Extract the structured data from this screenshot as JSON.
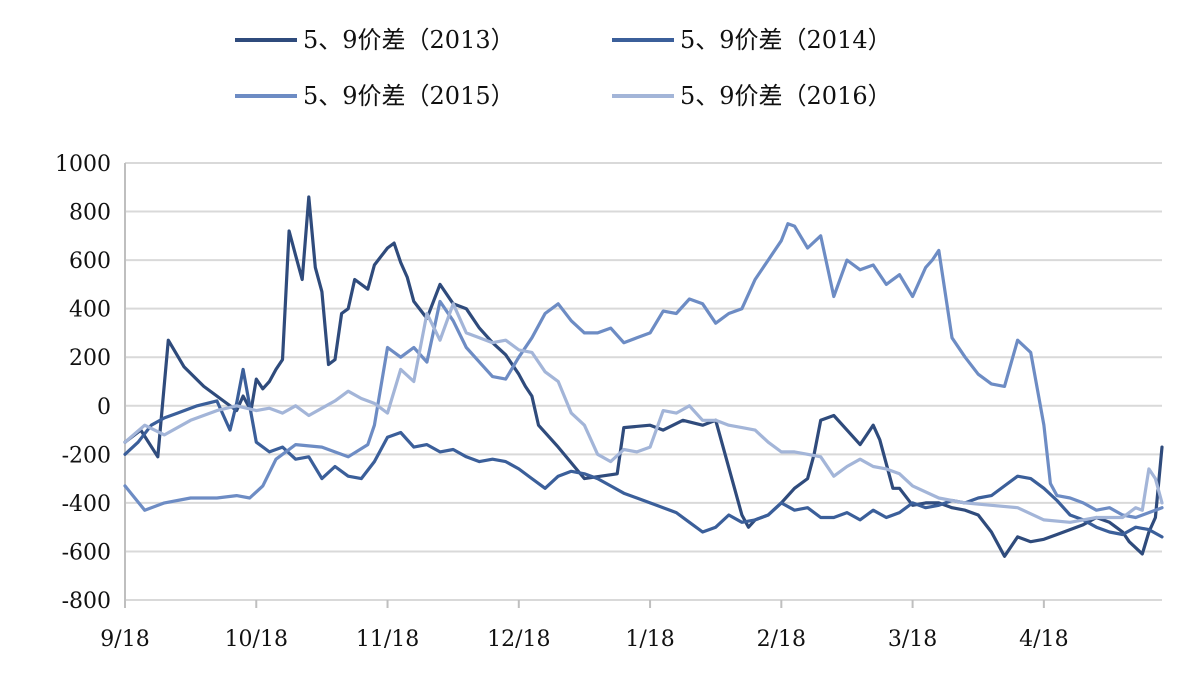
{
  "chart_data": {
    "type": "line",
    "title": "",
    "xlabel": "",
    "ylabel": "",
    "ylim": [
      -800,
      1000
    ],
    "y_ticks": [
      -800,
      -600,
      -400,
      -200,
      0,
      200,
      400,
      600,
      800,
      1000
    ],
    "x_ticks": [
      "9/18",
      "10/18",
      "11/18",
      "12/18",
      "1/18",
      "2/18",
      "3/18",
      "4/18"
    ],
    "x_range_months": [
      0,
      7.9
    ],
    "grid": true,
    "legend_position": "top",
    "series": [
      {
        "name": "5、9价差（2013）",
        "color": "#2f4b7c",
        "x": [
          0,
          0.12,
          0.25,
          0.33,
          0.45,
          0.6,
          0.75,
          0.85,
          0.9,
          0.96,
          1.0,
          1.05,
          1.1,
          1.15,
          1.2,
          1.25,
          1.3,
          1.35,
          1.4,
          1.45,
          1.5,
          1.55,
          1.6,
          1.65,
          1.7,
          1.75,
          1.85,
          1.9,
          2.0,
          2.05,
          2.1,
          2.15,
          2.2,
          2.3,
          2.4,
          2.5,
          2.6,
          2.7,
          2.8,
          2.9,
          3.0,
          3.05,
          3.1,
          3.15,
          3.3,
          3.5,
          3.75,
          3.8,
          4.0,
          4.1,
          4.25,
          4.4,
          4.5,
          4.7,
          4.75,
          4.8,
          4.9,
          5.0,
          5.1,
          5.2,
          5.25,
          5.3,
          5.4,
          5.5,
          5.6,
          5.65,
          5.7,
          5.75,
          5.85,
          5.9,
          6.0,
          6.1,
          6.2,
          6.3,
          6.4,
          6.5,
          6.6,
          6.7,
          6.8,
          6.9,
          7.0,
          7.1,
          7.2,
          7.3,
          7.4,
          7.5,
          7.55,
          7.6,
          7.65,
          7.75,
          7.8,
          7.85,
          7.9
        ],
        "y": [
          -150,
          -100,
          -210,
          270,
          160,
          80,
          20,
          -20,
          40,
          -20,
          110,
          70,
          100,
          150,
          190,
          720,
          620,
          520,
          860,
          570,
          470,
          170,
          190,
          380,
          400,
          520,
          480,
          580,
          650,
          670,
          590,
          530,
          430,
          360,
          500,
          420,
          400,
          320,
          260,
          210,
          130,
          80,
          40,
          -80,
          -170,
          -300,
          -280,
          -90,
          -80,
          -100,
          -60,
          -80,
          -60,
          -450,
          -500,
          -470,
          -450,
          -400,
          -340,
          -300,
          -200,
          -60,
          -40,
          -100,
          -160,
          -120,
          -80,
          -140,
          -340,
          -340,
          -410,
          -400,
          -400,
          -420,
          -430,
          -450,
          -520,
          -620,
          -540,
          -560,
          -550,
          -530,
          -510,
          -490,
          -460,
          -480,
          -500,
          -520,
          -560,
          -610,
          -520,
          -460,
          -170
        ]
      },
      {
        "name": "5、9价差（2014）",
        "color": "#3b5f9a",
        "x": [
          0,
          0.1,
          0.2,
          0.3,
          0.4,
          0.55,
          0.7,
          0.8,
          0.85,
          0.9,
          1.0,
          1.1,
          1.2,
          1.3,
          1.4,
          1.5,
          1.6,
          1.7,
          1.8,
          1.9,
          2.0,
          2.1,
          2.2,
          2.3,
          2.4,
          2.5,
          2.6,
          2.7,
          2.8,
          2.9,
          3.0,
          3.1,
          3.2,
          3.3,
          3.4,
          3.5,
          3.6,
          3.7,
          3.8,
          3.9,
          4.0,
          4.1,
          4.2,
          4.3,
          4.4,
          4.5,
          4.6,
          4.7,
          4.8,
          4.9,
          5.0,
          5.1,
          5.2,
          5.3,
          5.4,
          5.5,
          5.6,
          5.7,
          5.8,
          5.9,
          6.0,
          6.1,
          6.2,
          6.3,
          6.4,
          6.5,
          6.6,
          6.7,
          6.8,
          6.9,
          7.0,
          7.1,
          7.2,
          7.3,
          7.4,
          7.5,
          7.6,
          7.7,
          7.8,
          7.9
        ],
        "y": [
          -200,
          -150,
          -80,
          -50,
          -30,
          0,
          20,
          -100,
          10,
          150,
          -150,
          -190,
          -170,
          -220,
          -210,
          -300,
          -250,
          -290,
          -300,
          -230,
          -130,
          -110,
          -170,
          -160,
          -190,
          -180,
          -210,
          -230,
          -220,
          -230,
          -260,
          -300,
          -340,
          -290,
          -270,
          -280,
          -300,
          -330,
          -360,
          -380,
          -400,
          -420,
          -440,
          -480,
          -520,
          -500,
          -450,
          -480,
          -470,
          -450,
          -400,
          -430,
          -420,
          -460,
          -460,
          -440,
          -470,
          -430,
          -460,
          -440,
          -400,
          -420,
          -410,
          -390,
          -400,
          -380,
          -370,
          -330,
          -290,
          -300,
          -340,
          -390,
          -450,
          -470,
          -500,
          -520,
          -530,
          -500,
          -510,
          -540
        ]
      },
      {
        "name": "5、9价差（2015）",
        "color": "#6d8cc4",
        "x": [
          0,
          0.15,
          0.3,
          0.5,
          0.7,
          0.85,
          0.95,
          1.05,
          1.15,
          1.3,
          1.5,
          1.7,
          1.85,
          1.9,
          2.0,
          2.1,
          2.2,
          2.3,
          2.4,
          2.5,
          2.6,
          2.7,
          2.8,
          2.9,
          3.0,
          3.1,
          3.2,
          3.3,
          3.4,
          3.5,
          3.6,
          3.7,
          3.8,
          3.9,
          4.0,
          4.1,
          4.2,
          4.3,
          4.4,
          4.5,
          4.6,
          4.7,
          4.8,
          4.9,
          5.0,
          5.05,
          5.1,
          5.2,
          5.3,
          5.4,
          5.5,
          5.6,
          5.7,
          5.8,
          5.9,
          6.0,
          6.1,
          6.15,
          6.2,
          6.3,
          6.4,
          6.5,
          6.6,
          6.7,
          6.8,
          6.9,
          7.0,
          7.05,
          7.1,
          7.2,
          7.3,
          7.4,
          7.5,
          7.6,
          7.7,
          7.8,
          7.9
        ],
        "y": [
          -330,
          -430,
          -400,
          -380,
          -380,
          -370,
          -380,
          -330,
          -220,
          -160,
          -170,
          -210,
          -160,
          -80,
          240,
          200,
          240,
          180,
          430,
          350,
          240,
          180,
          120,
          110,
          200,
          280,
          380,
          420,
          350,
          300,
          300,
          320,
          260,
          280,
          300,
          390,
          380,
          440,
          420,
          340,
          380,
          400,
          520,
          600,
          680,
          750,
          740,
          650,
          700,
          450,
          600,
          560,
          580,
          500,
          540,
          450,
          570,
          600,
          640,
          280,
          200,
          130,
          90,
          80,
          270,
          220,
          -80,
          -320,
          -370,
          -380,
          -400,
          -430,
          -420,
          -450,
          -460,
          -440,
          -420
        ]
      },
      {
        "name": "5、9价差（2016）",
        "color": "#a3b5d8",
        "x": [
          0,
          0.15,
          0.3,
          0.5,
          0.7,
          0.85,
          1.0,
          1.1,
          1.2,
          1.3,
          1.4,
          1.5,
          1.6,
          1.7,
          1.8,
          1.9,
          2.0,
          2.1,
          2.2,
          2.3,
          2.4,
          2.5,
          2.6,
          2.7,
          2.8,
          2.9,
          3.0,
          3.1,
          3.2,
          3.3,
          3.4,
          3.5,
          3.6,
          3.7,
          3.8,
          3.9,
          4.0,
          4.1,
          4.2,
          4.3,
          4.4,
          4.5,
          4.6,
          4.7,
          4.8,
          4.9,
          5.0,
          5.1,
          5.2,
          5.3,
          5.4,
          5.5,
          5.6,
          5.7,
          5.8,
          5.9,
          6.0,
          6.2,
          6.4,
          6.6,
          6.8,
          7.0,
          7.2,
          7.4,
          7.6,
          7.7,
          7.75,
          7.8,
          7.85,
          7.9
        ],
        "y": [
          -150,
          -80,
          -120,
          -60,
          -20,
          0,
          -20,
          -10,
          -30,
          0,
          -40,
          -10,
          20,
          60,
          30,
          10,
          -30,
          150,
          100,
          380,
          270,
          420,
          300,
          280,
          260,
          270,
          230,
          220,
          140,
          100,
          -30,
          -80,
          -200,
          -230,
          -180,
          -190,
          -170,
          -20,
          -30,
          0,
          -60,
          -60,
          -80,
          -90,
          -100,
          -150,
          -190,
          -190,
          -200,
          -210,
          -290,
          -250,
          -220,
          -250,
          -260,
          -280,
          -330,
          -380,
          -400,
          -410,
          -420,
          -470,
          -480,
          -460,
          -460,
          -420,
          -430,
          -260,
          -300,
          -400
        ]
      }
    ]
  }
}
